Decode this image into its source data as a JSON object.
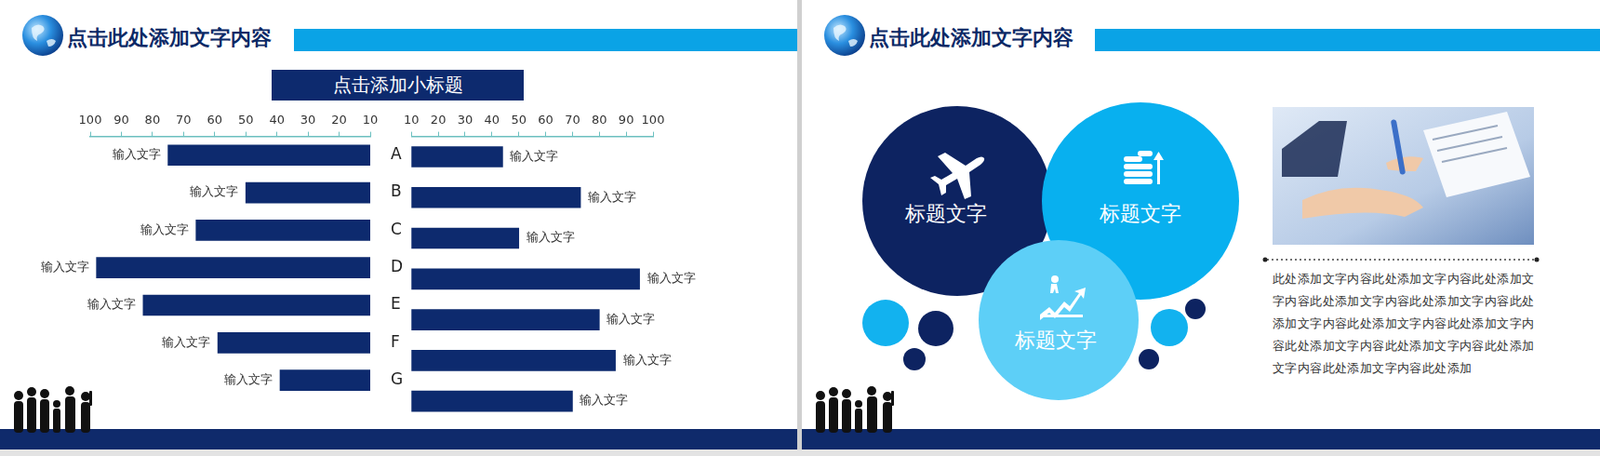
{
  "slides": [
    {
      "header": "点击此处添加文字内容",
      "subtitle": "点击添加小标题"
    },
    {
      "header": "点击此处添加文字内容",
      "nodes": [
        {
          "label": "标题文字"
        },
        {
          "label": "标题文字"
        },
        {
          "label": "标题文字"
        }
      ],
      "paragraph": "此处添加文字内容此处添加文字内容此处添加文字内容此处添加文字内容此处添加文字内容此处添加文字内容此处添加文字内容此处添加文字内容此处添加文字内容此处添加文字内容此处添加文字内容此处添加文字内容此处添加"
    }
  ],
  "chart_data": [
    {
      "type": "bar",
      "orientation": "horizontal",
      "categories": [
        "A",
        "B",
        "C",
        "D",
        "E",
        "F",
        "G"
      ],
      "values": [
        75,
        50,
        66,
        98,
        83,
        59,
        39
      ],
      "value_labels": [
        "输入文字",
        "输入文字",
        "输入文字",
        "输入文字",
        "输入文字",
        "输入文字",
        "输入文字"
      ],
      "data_labels": true,
      "color": "#0d2a6e",
      "xlim": [
        100,
        10
      ],
      "xticks": [
        100,
        90,
        80,
        70,
        60,
        50,
        40,
        30,
        20,
        10
      ],
      "grid": false
    },
    {
      "type": "bar",
      "orientation": "horizontal",
      "categories": [
        "A",
        "B",
        "C",
        "D",
        "E",
        "F",
        "G"
      ],
      "values": [
        44,
        73,
        50,
        95,
        80,
        86,
        70
      ],
      "value_labels": [
        "输入文字",
        "输入文字",
        "输入文字",
        "输入文字",
        "输入文字",
        "输入文字",
        "输入文字"
      ],
      "data_labels": true,
      "color": "#0d2a6e",
      "xlim": [
        10,
        100
      ],
      "xticks": [
        10,
        20,
        30,
        40,
        50,
        60,
        70,
        80,
        90,
        100
      ],
      "grid": false,
      "tick_labels": "x"
    }
  ]
}
